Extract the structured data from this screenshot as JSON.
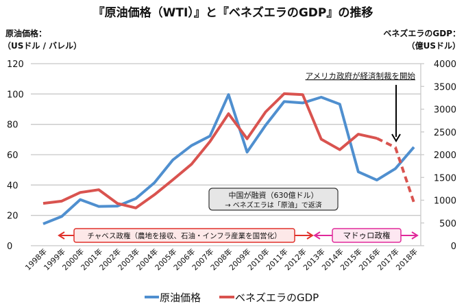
{
  "chart_data": {
    "type": "line",
    "title": "『原油価格（WTI）』と『ベネズエラのGDP』の推移",
    "ylabel_left": [
      "原油価格：",
      "（USドル / バレル）"
    ],
    "ylabel_right": [
      "ベネズエラのGDP：",
      "（億USドル）"
    ],
    "categories": [
      "1998年",
      "1999年",
      "2000年",
      "2001年",
      "2002年",
      "2003年",
      "2004年",
      "2005年",
      "2006年",
      "2007年",
      "2008年",
      "2009年",
      "2010年",
      "2011年",
      "2012年",
      "2013年",
      "2014年",
      "2015年",
      "2016年",
      "2017年",
      "2018年"
    ],
    "ylim_left": [
      0,
      120
    ],
    "yticks_left": [
      "0",
      "20",
      "40",
      "60",
      "80",
      "100",
      "120"
    ],
    "ylim_right": [
      0,
      4000
    ],
    "yticks_right": [
      "0",
      "500",
      "1000",
      "1500",
      "2000",
      "2500",
      "3000",
      "3500",
      "4000"
    ],
    "grid": true,
    "legend_position": "bottom",
    "series": [
      {
        "name": "原油価格",
        "axis": "left",
        "color": "#4f8fcf",
        "values": [
          14.4,
          19.3,
          30.4,
          25.9,
          26.1,
          31.1,
          41.5,
          56.6,
          66.0,
          72.3,
          99.6,
          61.7,
          79.4,
          95.0,
          94.1,
          97.9,
          93.3,
          48.7,
          43.3,
          50.8,
          65.0
        ]
      },
      {
        "name": "ベネズエラのGDP",
        "axis": "right",
        "color": "#d9534f",
        "dashed_from": "2016年",
        "values": [
          930,
          980,
          1170,
          1230,
          930,
          830,
          1120,
          1450,
          1790,
          2290,
          2900,
          2350,
          2940,
          3340,
          3320,
          2340,
          2110,
          2450,
          2360,
          2160,
          950
        ]
      }
    ],
    "annotations": {
      "sanctions": "アメリカ政府が経済制裁を開始",
      "china_line1": "中国が融資（630億ドル）",
      "china_line2": "→ ベネズエラは「原油」で返済",
      "chavez": "チャベス政権（農地を接収、石油・インフラ産業を国営化）",
      "maduro": "マドゥロ政権"
    },
    "colors": {
      "chavez": "#e0302a",
      "maduro": "#e0289a",
      "grid": "#c8c8c8"
    }
  }
}
